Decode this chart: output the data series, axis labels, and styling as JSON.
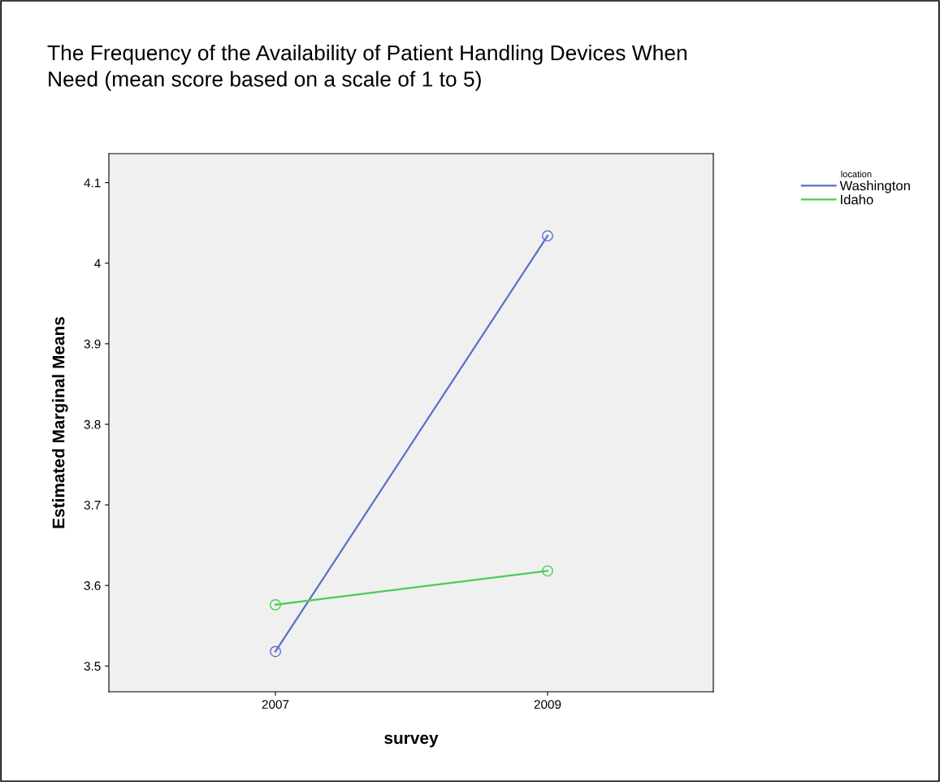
{
  "chart_data": {
    "type": "line",
    "title": "The Frequency of the Availability of Patient Handling Devices When\nNeed (mean score based on a scale of 1 to 5)",
    "xlabel": "survey",
    "ylabel": "Estimated Marginal Means",
    "legend_title": "location",
    "categories": [
      "2007",
      "2009"
    ],
    "series": [
      {
        "name": "Washington",
        "color": "#5b6fc6",
        "values": [
          3.518,
          4.034
        ]
      },
      {
        "name": "Idaho",
        "color": "#4ccc55",
        "values": [
          3.576,
          3.618
        ]
      }
    ],
    "ylim": [
      3.468,
      4.136
    ],
    "yticks": [
      3.5,
      3.6,
      3.7,
      3.8,
      3.9,
      4,
      4.1
    ],
    "grid": false,
    "legend": "top right",
    "marker": "circle",
    "line_style": "solid"
  }
}
